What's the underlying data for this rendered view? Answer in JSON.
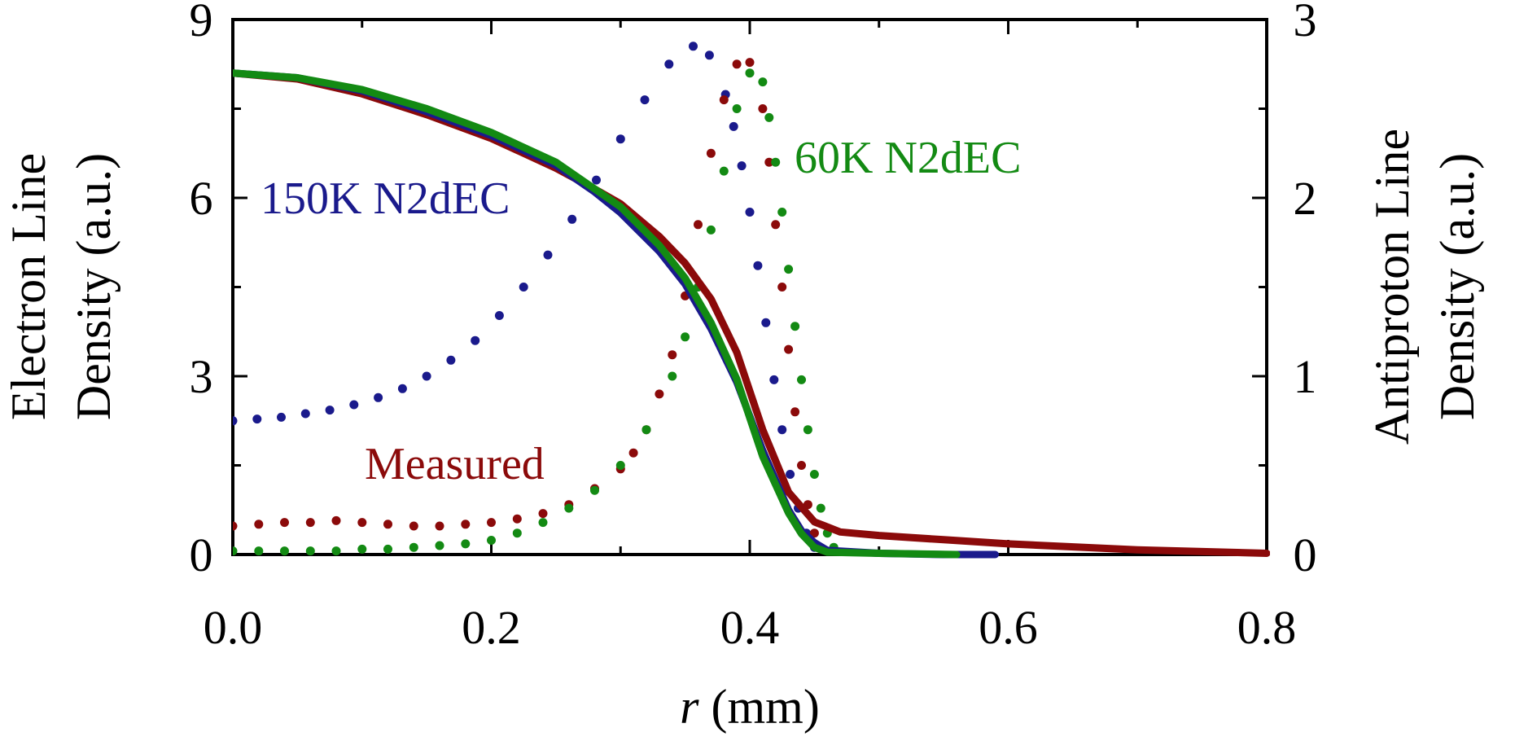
{
  "chart_data": {
    "type": "line",
    "xlabel_italic": "r",
    "xlabel_rest": " (mm)",
    "ylabel_left": [
      "Electron Line",
      "Density (a.u.)"
    ],
    "ylabel_right": [
      "Antiproton Line",
      "Density (a.u.)"
    ],
    "xlim": [
      0,
      0.8
    ],
    "ylim_left": [
      0,
      9
    ],
    "ylim_right": [
      0,
      3
    ],
    "x_ticks": [
      "0.0",
      "0.2",
      "0.4",
      "0.6",
      "0.8"
    ],
    "y_ticks_left": [
      "0",
      "3",
      "6",
      "9"
    ],
    "y_ticks_right": [
      "0",
      "1",
      "2",
      "3"
    ],
    "colors": {
      "blue": "#1a1a8c",
      "red": "#8b0a0a",
      "green": "#138a13"
    },
    "annotations": {
      "n150": "150K N2dEC",
      "n60": "60K N2dEC",
      "measured": "Measured"
    },
    "electron_series": [
      {
        "name": "Measured",
        "color": "red",
        "x": [
          0,
          0.05,
          0.1,
          0.15,
          0.2,
          0.25,
          0.28,
          0.3,
          0.33,
          0.35,
          0.37,
          0.39,
          0.41,
          0.43,
          0.45,
          0.47,
          0.5,
          0.55,
          0.6,
          0.7,
          0.8
        ],
        "y": [
          8.1,
          8.0,
          7.75,
          7.4,
          7.0,
          6.5,
          6.15,
          5.9,
          5.35,
          4.9,
          4.3,
          3.4,
          2.1,
          1.05,
          0.55,
          0.38,
          0.32,
          0.25,
          0.18,
          0.08,
          0.02
        ]
      },
      {
        "name": "150K N2dEC",
        "color": "blue",
        "x": [
          0,
          0.05,
          0.1,
          0.15,
          0.2,
          0.25,
          0.28,
          0.3,
          0.33,
          0.35,
          0.37,
          0.39,
          0.41,
          0.43,
          0.44,
          0.45,
          0.46,
          0.5,
          0.55,
          0.59
        ],
        "y": [
          8.1,
          8.02,
          7.8,
          7.45,
          7.05,
          6.55,
          6.1,
          5.75,
          5.1,
          4.55,
          3.8,
          2.9,
          1.75,
          0.75,
          0.4,
          0.2,
          0.07,
          0.02,
          0.0,
          0.0
        ]
      },
      {
        "name": "60K N2dEC",
        "color": "green",
        "x": [
          0,
          0.05,
          0.1,
          0.15,
          0.2,
          0.25,
          0.28,
          0.3,
          0.33,
          0.35,
          0.37,
          0.39,
          0.41,
          0.43,
          0.44,
          0.45,
          0.46,
          0.5,
          0.56
        ],
        "y": [
          8.1,
          8.02,
          7.82,
          7.5,
          7.1,
          6.6,
          6.15,
          5.85,
          5.2,
          4.65,
          3.9,
          2.95,
          1.65,
          0.7,
          0.35,
          0.12,
          0.04,
          0.02,
          0.0
        ]
      }
    ],
    "antiproton_series": [
      {
        "name": "150K N2dEC",
        "color": "blue",
        "x": [
          0.0,
          0.01875,
          0.0375,
          0.05625,
          0.075,
          0.09375,
          0.1125,
          0.13125,
          0.15,
          0.16875,
          0.1875,
          0.20625,
          0.225,
          0.24375,
          0.2625,
          0.28125,
          0.3,
          0.31875,
          0.3375,
          0.35625,
          0.36875,
          0.38125,
          0.3875,
          0.39375,
          0.4,
          0.40625,
          0.4125,
          0.41875,
          0.425,
          0.43125,
          0.4375,
          0.44375,
          0.45
        ],
        "y": [
          0.75,
          0.76,
          0.77,
          0.79,
          0.81,
          0.84,
          0.88,
          0.93,
          1.0,
          1.09,
          1.2,
          1.34,
          1.5,
          1.68,
          1.88,
          2.1,
          2.33,
          2.55,
          2.75,
          2.85,
          2.8,
          2.58,
          2.4,
          2.18,
          1.92,
          1.62,
          1.3,
          0.98,
          0.7,
          0.45,
          0.26,
          0.12,
          0.04
        ]
      },
      {
        "name": "Measured",
        "color": "red",
        "x": [
          0.0,
          0.02,
          0.04,
          0.06,
          0.08,
          0.1,
          0.12,
          0.14,
          0.16,
          0.18,
          0.2,
          0.22,
          0.24,
          0.26,
          0.28,
          0.3,
          0.31,
          0.32,
          0.33,
          0.34,
          0.35,
          0.36,
          0.37,
          0.38,
          0.39,
          0.4,
          0.41,
          0.415,
          0.42,
          0.425,
          0.43,
          0.435,
          0.44,
          0.445,
          0.45
        ],
        "y": [
          0.16,
          0.17,
          0.18,
          0.18,
          0.19,
          0.18,
          0.17,
          0.16,
          0.16,
          0.17,
          0.18,
          0.2,
          0.23,
          0.28,
          0.37,
          0.48,
          0.57,
          0.7,
          0.9,
          1.12,
          1.45,
          1.85,
          2.25,
          2.55,
          2.75,
          2.76,
          2.5,
          2.2,
          1.85,
          1.5,
          1.15,
          0.8,
          0.5,
          0.28,
          0.12
        ]
      },
      {
        "name": "60K N2dEC",
        "color": "green",
        "x": [
          0.0,
          0.02,
          0.04,
          0.06,
          0.08,
          0.1,
          0.12,
          0.14,
          0.16,
          0.18,
          0.2,
          0.22,
          0.24,
          0.26,
          0.28,
          0.3,
          0.32,
          0.34,
          0.35,
          0.36,
          0.37,
          0.38,
          0.39,
          0.4,
          0.41,
          0.415,
          0.42,
          0.425,
          0.43,
          0.435,
          0.44,
          0.445,
          0.45,
          0.455,
          0.46,
          0.465
        ],
        "y": [
          0.02,
          0.02,
          0.02,
          0.02,
          0.02,
          0.03,
          0.03,
          0.04,
          0.05,
          0.06,
          0.08,
          0.12,
          0.18,
          0.26,
          0.36,
          0.5,
          0.7,
          1.0,
          1.22,
          1.5,
          1.82,
          2.15,
          2.5,
          2.7,
          2.65,
          2.45,
          2.2,
          1.92,
          1.6,
          1.28,
          0.98,
          0.7,
          0.45,
          0.26,
          0.12,
          0.04
        ]
      }
    ]
  }
}
